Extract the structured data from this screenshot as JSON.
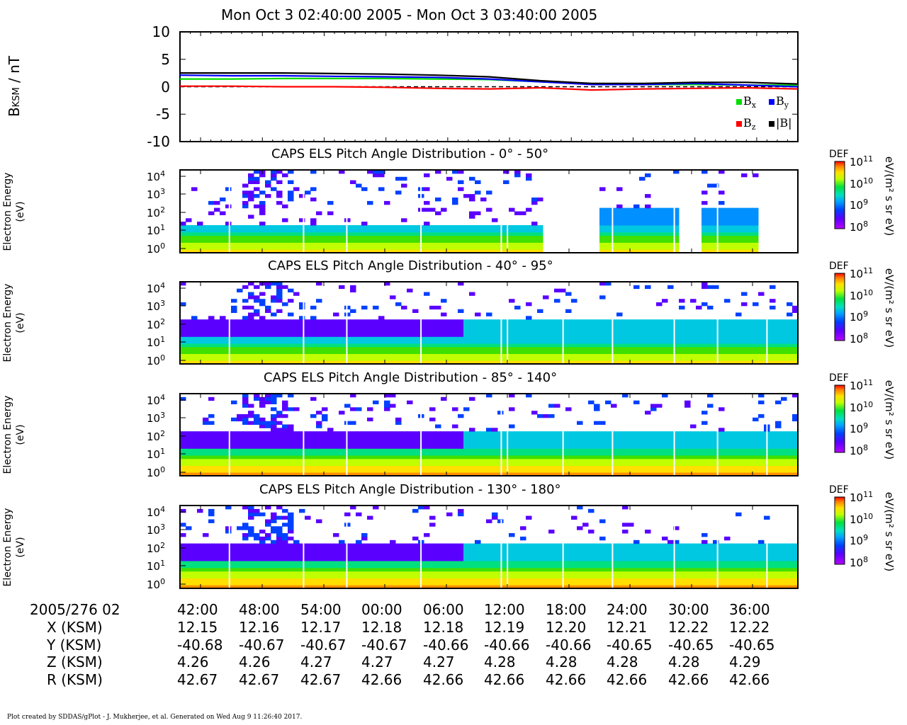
{
  "title": "Mon Oct 3 02:40:00 2005 - Mon Oct 3 03:40:00 2005",
  "footer": "Plot created by SDDAS/gPlot - J. Mukherjee, et al.  Generated on Wed Aug 9 11:26:40 2017.",
  "colors": {
    "bx": "#00dd00",
    "by": "#0000ff",
    "bz": "#ff0000",
    "bmag": "#000000",
    "frame": "#000000"
  },
  "mag_panel": {
    "ylabel_main": "B",
    "ylabel_sub": "KSM",
    "ylabel_unit": " / nT",
    "yticks": [
      "10",
      "5",
      "0",
      "-5",
      "-10"
    ],
    "legend": [
      {
        "key": "bx",
        "label": "B",
        "sub": "x"
      },
      {
        "key": "by",
        "label": "B",
        "sub": "y"
      },
      {
        "key": "bz",
        "label": "B",
        "sub": "z"
      },
      {
        "key": "bmag",
        "label": "|B|",
        "sub": ""
      }
    ]
  },
  "spectro_panels": [
    {
      "title": "CAPS ELS Pitch Angle Distribution - 0° - 50°",
      "ylabel1": "Electron Energy",
      "ylabel2": "(eV)",
      "cb_label": "DEF",
      "cb_unit": "eV/(m² s sr eV)"
    },
    {
      "title": "CAPS ELS Pitch Angle Distribution - 40° - 95°",
      "ylabel1": "Electron Energy",
      "ylabel2": "(eV)",
      "cb_label": "DEF",
      "cb_unit": "eV/(m² s sr eV)"
    },
    {
      "title": "CAPS ELS Pitch Angle Distribution - 85° - 140°",
      "ylabel1": "Electron Energy",
      "ylabel2": "(eV)",
      "cb_label": "DEF",
      "cb_unit": "eV/(m² s sr eV)"
    },
    {
      "title": "CAPS ELS Pitch Angle Distribution - 130° - 180°",
      "ylabel1": "Electron Energy",
      "ylabel2": "(eV)",
      "cb_label": "DEF",
      "cb_unit": "eV/(m² s sr eV)"
    }
  ],
  "energy_ticks": [
    {
      "base": "10",
      "exp": "4"
    },
    {
      "base": "10",
      "exp": "3"
    },
    {
      "base": "10",
      "exp": "2"
    },
    {
      "base": "10",
      "exp": "1"
    },
    {
      "base": "10",
      "exp": "0"
    }
  ],
  "cb_ticks": [
    {
      "base": "10",
      "exp": "11"
    },
    {
      "base": "10",
      "exp": "10"
    },
    {
      "base": "10",
      "exp": "9"
    },
    {
      "base": "10",
      "exp": "8"
    }
  ],
  "time_axis": {
    "date_label": "2005/276 02",
    "ticks": [
      "42:00",
      "48:00",
      "54:00",
      "00:00",
      "06:00",
      "12:00",
      "18:00",
      "24:00",
      "30:00",
      "36:00"
    ]
  },
  "ephemeris": [
    {
      "label": "X (KSM)",
      "values": [
        "12.15",
        "12.16",
        "12.17",
        "12.18",
        "12.18",
        "12.19",
        "12.20",
        "12.21",
        "12.22",
        "12.22"
      ]
    },
    {
      "label": "Y (KSM)",
      "values": [
        "-40.68",
        "-40.67",
        "-40.67",
        "-40.67",
        "-40.66",
        "-40.66",
        "-40.66",
        "-40.65",
        "-40.65",
        "-40.65"
      ]
    },
    {
      "label": "Z (KSM)",
      "values": [
        "4.26",
        "4.26",
        "4.27",
        "4.27",
        "4.27",
        "4.28",
        "4.28",
        "4.28",
        "4.28",
        "4.29"
      ]
    },
    {
      "label": "R (KSM)",
      "values": [
        "42.67",
        "42.67",
        "42.67",
        "42.66",
        "42.66",
        "42.66",
        "42.66",
        "42.66",
        "42.66",
        "42.66"
      ]
    }
  ],
  "chart_data": [
    {
      "type": "line",
      "x_unit": "minutes after 02:40 UT",
      "xlim": [
        0,
        60
      ],
      "ylim": [
        -10,
        10
      ],
      "ylabel": "BKSM / nT",
      "grid": false,
      "legend_position": "bottom-right",
      "series": [
        {
          "name": "Bx",
          "x": [
            0,
            5,
            10,
            15,
            20,
            25,
            30,
            35,
            40,
            45,
            50,
            55,
            60
          ],
          "values": [
            1.4,
            1.4,
            1.5,
            1.5,
            1.5,
            1.4,
            1.3,
            0.9,
            0.5,
            0.4,
            0.4,
            0.3,
            0.3
          ]
        },
        {
          "name": "By",
          "x": [
            0,
            5,
            10,
            15,
            20,
            25,
            30,
            35,
            40,
            45,
            50,
            55,
            60
          ],
          "values": [
            2.1,
            2.0,
            2.0,
            1.9,
            1.8,
            1.7,
            1.4,
            0.9,
            0.4,
            0.4,
            0.6,
            0.3,
            0.0
          ]
        },
        {
          "name": "Bz",
          "x": [
            0,
            5,
            10,
            15,
            20,
            25,
            30,
            35,
            40,
            45,
            50,
            55,
            60
          ],
          "values": [
            0.1,
            0.1,
            0.0,
            0.0,
            -0.1,
            -0.3,
            -0.4,
            -0.2,
            -0.6,
            -0.4,
            -0.3,
            -0.2,
            -0.4
          ]
        },
        {
          "name": "|B|",
          "x": [
            0,
            5,
            10,
            15,
            20,
            25,
            30,
            35,
            40,
            45,
            50,
            55,
            60
          ],
          "values": [
            2.5,
            2.5,
            2.5,
            2.4,
            2.3,
            2.1,
            1.8,
            1.1,
            0.6,
            0.6,
            0.8,
            0.8,
            0.5
          ]
        }
      ]
    }
  ]
}
